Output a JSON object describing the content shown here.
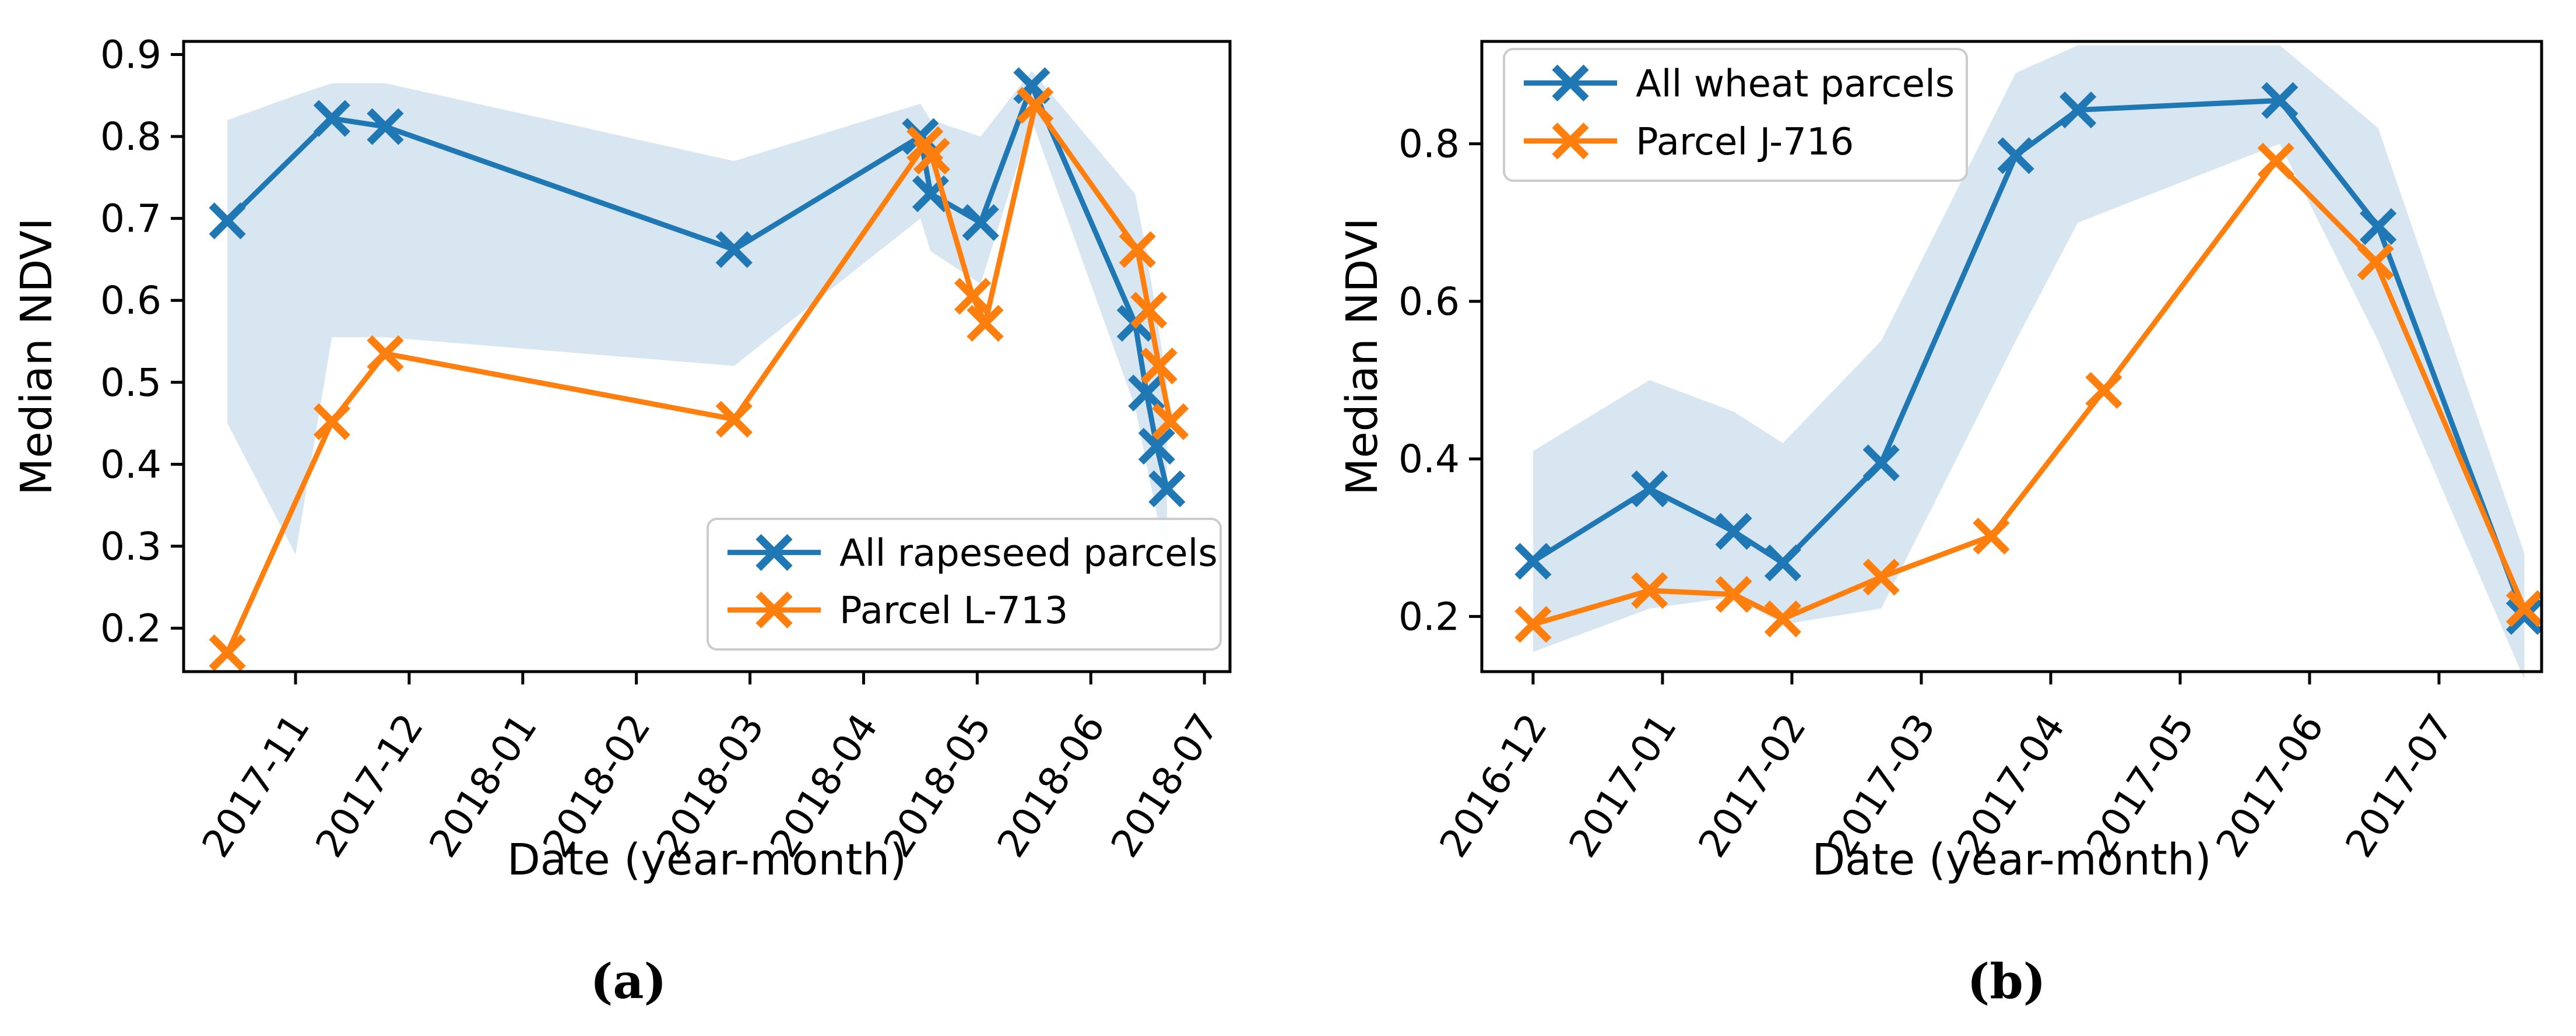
{
  "page": {
    "background": "#ffffff"
  },
  "captions": {
    "a": "(a)",
    "b": "(b)"
  },
  "colors": {
    "series_blue": "#1f77b4",
    "series_orange": "#ff7f0e",
    "band_fill": "#1f77b4",
    "band_opacity": 0.18,
    "axis": "#000000",
    "legend_border": "#cccccc"
  },
  "chart_data": [
    {
      "id": "panel-a",
      "type": "line",
      "caption": "(a)",
      "xlabel": "Date (year-month)",
      "ylabel": "Median NDVI",
      "x_axis_note": "x values are months relative to the first x tick",
      "x_tick_labels": [
        "2017-11",
        "2017-12",
        "2018-01",
        "2018-02",
        "2018-03",
        "2018-04",
        "2018-05",
        "2018-06",
        "2018-07"
      ],
      "y_tick_labels": [
        "0.9",
        "0.8",
        "0.7",
        "0.6",
        "0.5",
        "0.4",
        "0.3",
        "0.2"
      ],
      "y_tick_values": [
        0.9,
        0.8,
        0.7,
        0.6,
        0.5,
        0.4,
        0.3,
        0.2
      ],
      "xlim_months": [
        -0.985,
        8.225
      ],
      "ylim": [
        0.147,
        0.916
      ],
      "grid": false,
      "legend": {
        "position": "lower right",
        "items": [
          "All rapeseed parcels",
          "Parcel L-713"
        ]
      },
      "band": {
        "series": "All rapeseed parcels",
        "x": [
          -0.6,
          0.0,
          0.32,
          0.79,
          3.86,
          5.5,
          5.59,
          6.03,
          6.48,
          7.39,
          7.49,
          7.58,
          7.67
        ],
        "upper": [
          0.82,
          0.85,
          0.865,
          0.865,
          0.77,
          0.84,
          0.82,
          0.8,
          0.88,
          0.73,
          0.66,
          0.58,
          0.5
        ],
        "lower": [
          0.45,
          0.29,
          0.555,
          0.555,
          0.52,
          0.7,
          0.66,
          0.62,
          0.82,
          0.47,
          0.4,
          0.34,
          0.28
        ]
      },
      "series": [
        {
          "name": "All rapeseed parcels",
          "color": "#1f77b4",
          "marker": "x",
          "x": [
            -0.6,
            0.32,
            0.79,
            3.86,
            5.5,
            5.59,
            6.03,
            6.48,
            7.39,
            7.49,
            7.58,
            7.67
          ],
          "y": [
            0.697,
            0.822,
            0.812,
            0.662,
            0.8,
            0.73,
            0.695,
            0.862,
            0.572,
            0.487,
            0.422,
            0.37
          ],
          "dates": [
            "2017-10-13",
            "2017-11-10",
            "2017-11-25",
            "2018-02-27",
            "2018-04-16",
            "2018-04-19",
            "2018-05-01",
            "2018-05-15",
            "2018-06-13",
            "2018-06-16",
            "2018-06-19",
            "2018-06-21"
          ]
        },
        {
          "name": "Parcel L-713",
          "color": "#ff7f0e",
          "marker": "x",
          "x": [
            -0.6,
            0.32,
            0.79,
            3.86,
            5.54,
            5.6,
            5.96,
            6.07,
            6.51,
            7.41,
            7.51,
            7.6,
            7.7
          ],
          "y": [
            0.17,
            0.452,
            0.535,
            0.455,
            0.79,
            0.776,
            0.605,
            0.572,
            0.838,
            0.662,
            0.588,
            0.52,
            0.452
          ],
          "dates": [
            "2017-10-13",
            "2017-11-10",
            "2017-11-25",
            "2018-02-27",
            "2018-04-17",
            "2018-04-19",
            "2018-04-30",
            "2018-05-03",
            "2018-05-16",
            "2018-06-13",
            "2018-06-16",
            "2018-06-19",
            "2018-06-22"
          ]
        }
      ]
    },
    {
      "id": "panel-b",
      "type": "line",
      "caption": "(b)",
      "xlabel": "Date (year-month)",
      "ylabel": "Median NDVI",
      "x_axis_note": "x values are months relative to the first x tick",
      "x_tick_labels": [
        "2016-12",
        "2017-01",
        "2017-02",
        "2017-03",
        "2017-04",
        "2017-05",
        "2017-06",
        "2017-07"
      ],
      "y_tick_labels": [
        "0.8",
        "0.6",
        "0.4",
        "0.2"
      ],
      "y_tick_values": [
        0.8,
        0.6,
        0.4,
        0.2
      ],
      "xlim_months": [
        -0.396,
        7.793
      ],
      "ylim": [
        0.13,
        0.93
      ],
      "grid": false,
      "legend": {
        "position": "upper left",
        "items": [
          "All wheat parcels",
          "Parcel J-716"
        ]
      },
      "band": {
        "series": "All wheat parcels",
        "x": [
          0.0,
          0.9,
          1.55,
          1.93,
          2.69,
          3.73,
          4.21,
          5.77,
          6.53,
          7.66
        ],
        "upper": [
          0.41,
          0.5,
          0.46,
          0.42,
          0.55,
          0.89,
          0.925,
          0.925,
          0.82,
          0.28
        ],
        "lower": [
          0.155,
          0.21,
          0.225,
          0.19,
          0.21,
          0.55,
          0.7,
          0.8,
          0.55,
          0.12
        ]
      },
      "series": [
        {
          "name": "All wheat parcels",
          "color": "#1f77b4",
          "marker": "x",
          "x": [
            0.0,
            0.9,
            1.55,
            1.93,
            2.69,
            3.73,
            4.21,
            5.77,
            6.53,
            7.66
          ],
          "y": [
            0.27,
            0.362,
            0.308,
            0.268,
            0.395,
            0.785,
            0.843,
            0.855,
            0.695,
            0.2
          ],
          "dates": [
            "2016-12-01",
            "2016-12-28",
            "2017-01-17",
            "2017-01-29",
            "2017-02-21",
            "2017-03-23",
            "2017-04-07",
            "2017-05-24",
            "2017-06-17",
            "2017-07-21"
          ]
        },
        {
          "name": "Parcel J-716",
          "color": "#ff7f0e",
          "marker": "x",
          "x": [
            0.0,
            0.9,
            1.55,
            1.93,
            2.69,
            3.54,
            4.41,
            5.74,
            6.51,
            7.66
          ],
          "y": [
            0.19,
            0.233,
            0.228,
            0.197,
            0.25,
            0.302,
            0.487,
            0.778,
            0.65,
            0.21
          ],
          "dates": [
            "2016-12-01",
            "2016-12-28",
            "2017-01-17",
            "2017-01-29",
            "2017-02-21",
            "2017-03-17",
            "2017-04-13",
            "2017-05-23",
            "2017-06-16",
            "2017-07-21"
          ]
        }
      ]
    }
  ]
}
